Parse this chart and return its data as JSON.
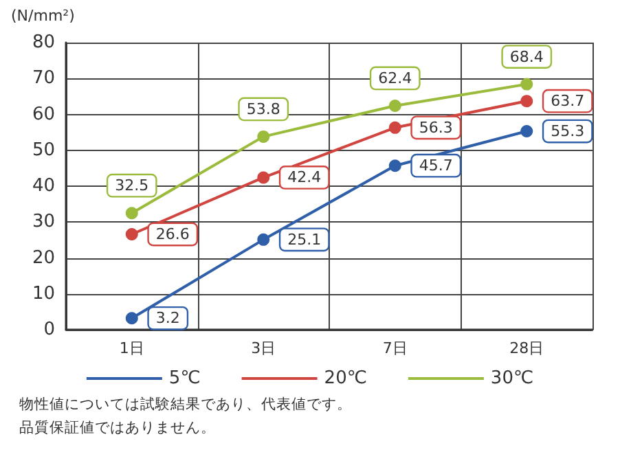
{
  "chart_data": {
    "type": "line",
    "ylabel": "(N/mm²)",
    "categories": [
      "1日",
      "3日",
      "7日",
      "28日"
    ],
    "series": [
      {
        "name": "5℃",
        "color": "#2f5fa8",
        "values": [
          3.2,
          25.1,
          45.7,
          55.3
        ]
      },
      {
        "name": "20℃",
        "color": "#d0453f",
        "values": [
          26.6,
          42.4,
          56.3,
          63.7
        ]
      },
      {
        "name": "30℃",
        "color": "#9bbb3c",
        "values": [
          32.5,
          53.8,
          62.4,
          68.4
        ]
      }
    ],
    "ylim": [
      0,
      80
    ],
    "yticks": [
      0,
      10,
      20,
      30,
      40,
      50,
      60,
      70,
      80
    ],
    "grid": true,
    "legend": "bottom",
    "marker": "circle",
    "line_style": "solid",
    "data_labels": true,
    "annotations": [
      "物性値については試験結果であり、代表値です。",
      "品質保証値ではありません。"
    ]
  }
}
